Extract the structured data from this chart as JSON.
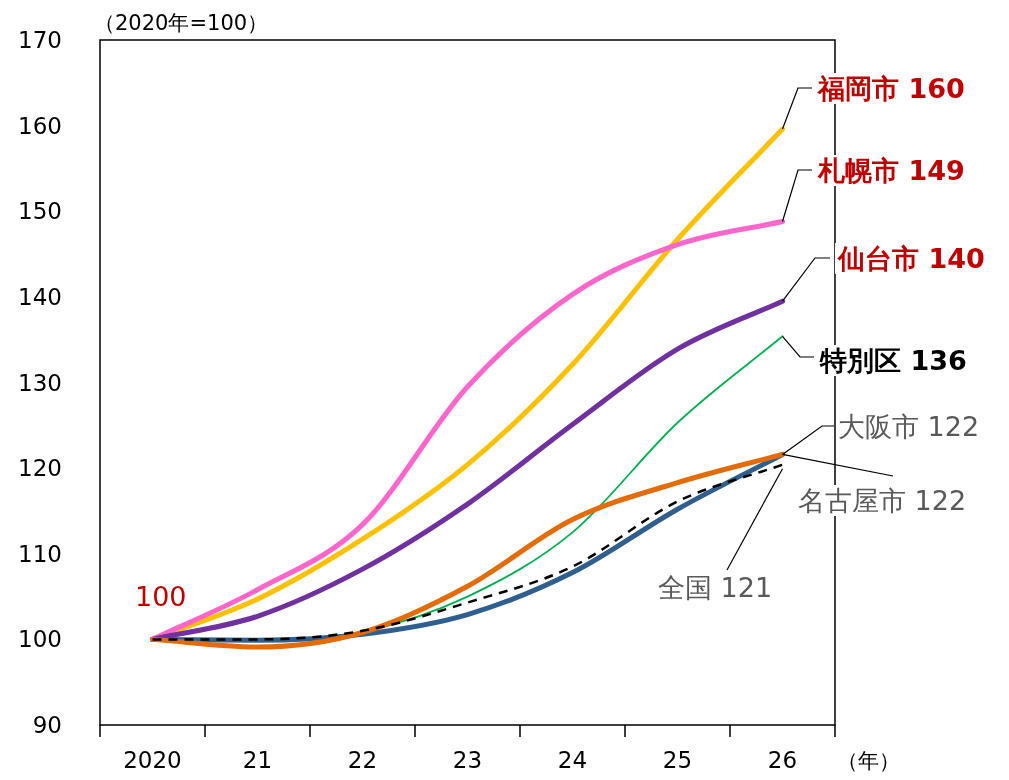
{
  "chart_data": {
    "type": "line",
    "ylabel": "（2020年=100）",
    "xlabel": "（年）",
    "categories": [
      "2020",
      "21",
      "22",
      "23",
      "24",
      "25",
      "26"
    ],
    "ylim": [
      90,
      170
    ],
    "yticks": [
      90,
      100,
      110,
      120,
      130,
      140,
      150,
      160,
      170
    ],
    "grid": false,
    "series": [
      {
        "color": "#ffc000",
        "values": [
          100,
          104.7,
          111.7,
          120.4,
          132.1,
          146.7,
          159.6
        ]
      },
      {
        "color": "#ff66cc",
        "values": [
          100,
          105.8,
          113.4,
          129.5,
          140.3,
          146.1,
          148.8
        ]
      },
      {
        "color": "#7030a0",
        "values": [
          100,
          102.7,
          108.2,
          115.8,
          125.1,
          133.9,
          139.5
        ]
      },
      {
        "color": "#00b050",
        "values": [
          100,
          99.8,
          100.9,
          105,
          112.5,
          125.3,
          135.4
        ]
      },
      {
        "color": "#2f5f8f",
        "values": [
          100,
          99.9,
          100.6,
          102.9,
          107.8,
          115.2,
          121.6
        ]
      },
      {
        "color": "#e36c09",
        "values": [
          100,
          99.1,
          100.8,
          106.2,
          114,
          118.3,
          121.6
        ]
      },
      {
        "color": "#000000",
        "values": [
          100,
          100,
          101,
          104.3,
          108.5,
          116.1,
          120.4
        ],
        "line_style": "dashed"
      }
    ],
    "annotations": [
      {
        "text": "福岡市 160",
        "x": "26",
        "y": 159.6
      },
      {
        "text": "札幌市 149",
        "x": "26",
        "y": 148.8
      },
      {
        "text": "仙台市 140",
        "x": "26",
        "y": 139.5
      },
      {
        "text": "特別区 136",
        "x": "26",
        "y": 135.4
      },
      {
        "text": "大阪市 122",
        "x": "26",
        "y": 121.6
      },
      {
        "text": "名古屋市 122",
        "x": "26",
        "y": 121.6
      },
      {
        "text": "全国 121",
        "x": "26",
        "y": 120.4
      },
      {
        "text": "100",
        "x": "2020",
        "y": 100
      }
    ]
  }
}
